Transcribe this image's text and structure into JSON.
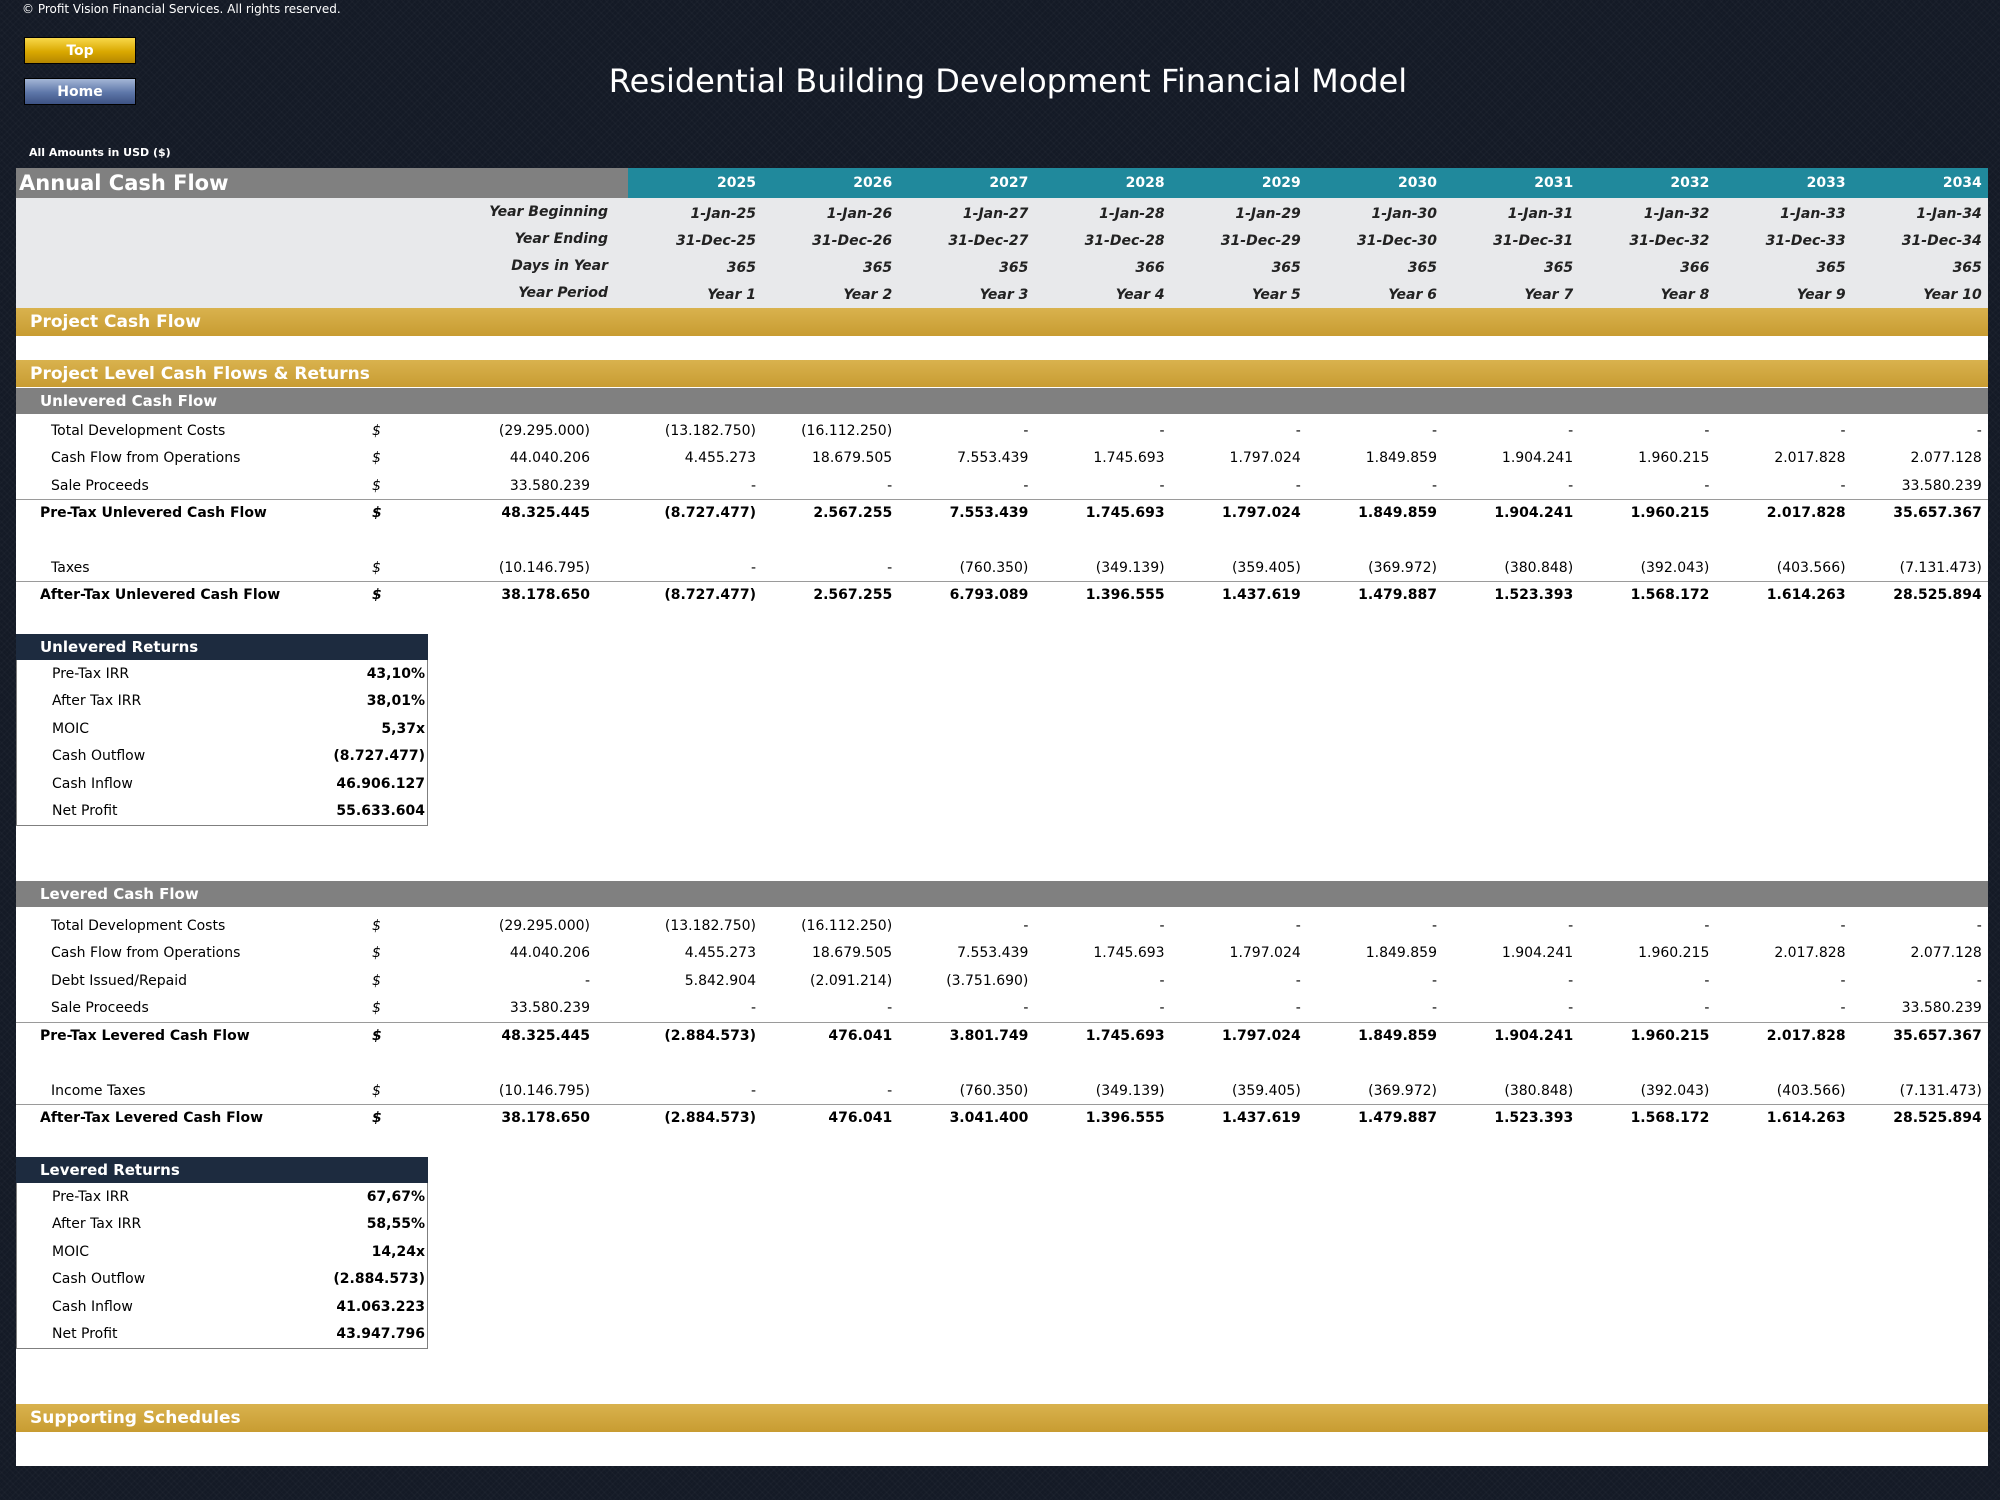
{
  "copyright": "© Profit Vision Financial Services. All rights reserved.",
  "nav": {
    "top_label": "Top",
    "home_label": "Home"
  },
  "title": "Residential Building Development Financial Model",
  "amounts_note": "All Amounts in  USD ($)",
  "sheet_title": "Annual Cash Flow",
  "years": [
    "2025",
    "2026",
    "2027",
    "2028",
    "2029",
    "2030",
    "2031",
    "2032",
    "2033",
    "2034"
  ],
  "info_rows": [
    {
      "label": "Year Beginning",
      "values": [
        "1-Jan-25",
        "1-Jan-26",
        "1-Jan-27",
        "1-Jan-28",
        "1-Jan-29",
        "1-Jan-30",
        "1-Jan-31",
        "1-Jan-32",
        "1-Jan-33",
        "1-Jan-34"
      ]
    },
    {
      "label": "Year Ending",
      "values": [
        "31-Dec-25",
        "31-Dec-26",
        "31-Dec-27",
        "31-Dec-28",
        "31-Dec-29",
        "31-Dec-30",
        "31-Dec-31",
        "31-Dec-32",
        "31-Dec-33",
        "31-Dec-34"
      ]
    },
    {
      "label": "Days in Year",
      "values": [
        "365",
        "365",
        "365",
        "366",
        "365",
        "365",
        "365",
        "366",
        "365",
        "365"
      ]
    },
    {
      "label": "Year Period",
      "values": [
        "Year 1",
        "Year 2",
        "Year 3",
        "Year 4",
        "Year 5",
        "Year 6",
        "Year 7",
        "Year 8",
        "Year 9",
        "Year 10"
      ]
    }
  ],
  "sections": {
    "project_cash_flow": "Project Cash Flow",
    "project_level": "Project Level Cash Flows & Returns",
    "unlevered_cf": "Unlevered Cash Flow",
    "unlevered_returns": "Unlevered Returns",
    "levered_cf": "Levered Cash Flow",
    "levered_returns": "Levered Returns",
    "supporting": "Supporting Schedules"
  },
  "unlevered_rows": [
    {
      "label": "Total Development Costs",
      "currency": "$",
      "total": "(29.295.000)",
      "values": [
        "(13.182.750)",
        "(16.112.250)",
        "-",
        "-",
        "-",
        "-",
        "-",
        "-",
        "-",
        "-"
      ],
      "bold": false
    },
    {
      "label": "Cash Flow from Operations",
      "currency": "$",
      "total": "44.040.206",
      "values": [
        "4.455.273",
        "18.679.505",
        "7.553.439",
        "1.745.693",
        "1.797.024",
        "1.849.859",
        "1.904.241",
        "1.960.215",
        "2.017.828",
        "2.077.128"
      ],
      "bold": false
    },
    {
      "label": "Sale Proceeds",
      "currency": "$",
      "total": "33.580.239",
      "values": [
        "-",
        "-",
        "-",
        "-",
        "-",
        "-",
        "-",
        "-",
        "-",
        "33.580.239"
      ],
      "bold": false
    },
    {
      "label": "Pre-Tax Unlevered Cash Flow",
      "currency": "$",
      "total": "48.325.445",
      "values": [
        "(8.727.477)",
        "2.567.255",
        "7.553.439",
        "1.745.693",
        "1.797.024",
        "1.849.859",
        "1.904.241",
        "1.960.215",
        "2.017.828",
        "35.657.367"
      ],
      "bold": true
    },
    {
      "label": "Taxes",
      "currency": "$",
      "total": "(10.146.795)",
      "values": [
        "-",
        "-",
        "(760.350)",
        "(349.139)",
        "(359.405)",
        "(369.972)",
        "(380.848)",
        "(392.043)",
        "(403.566)",
        "(7.131.473)"
      ],
      "bold": false
    },
    {
      "label": "After-Tax Unlevered Cash Flow",
      "currency": "$",
      "total": "38.178.650",
      "values": [
        "(8.727.477)",
        "2.567.255",
        "6.793.089",
        "1.396.555",
        "1.437.619",
        "1.479.887",
        "1.523.393",
        "1.568.172",
        "1.614.263",
        "28.525.894"
      ],
      "bold": true
    }
  ],
  "unlevered_returns": [
    {
      "label": "Pre-Tax IRR",
      "value": "43,10%"
    },
    {
      "label": "After Tax IRR",
      "value": "38,01%"
    },
    {
      "label": "MOIC",
      "value": "5,37x"
    },
    {
      "label": "Cash Outflow",
      "value": "(8.727.477)"
    },
    {
      "label": "Cash Inflow",
      "value": "46.906.127"
    },
    {
      "label": "Net Profit",
      "value": "55.633.604"
    }
  ],
  "levered_rows": [
    {
      "label": "Total Development Costs",
      "currency": "$",
      "total": "(29.295.000)",
      "values": [
        "(13.182.750)",
        "(16.112.250)",
        "-",
        "-",
        "-",
        "-",
        "-",
        "-",
        "-",
        "-"
      ],
      "bold": false
    },
    {
      "label": "Cash Flow from Operations",
      "currency": "$",
      "total": "44.040.206",
      "values": [
        "4.455.273",
        "18.679.505",
        "7.553.439",
        "1.745.693",
        "1.797.024",
        "1.849.859",
        "1.904.241",
        "1.960.215",
        "2.017.828",
        "2.077.128"
      ],
      "bold": false
    },
    {
      "label": "Debt Issued/Repaid",
      "currency": "$",
      "total": "-",
      "values": [
        "5.842.904",
        "(2.091.214)",
        "(3.751.690)",
        "-",
        "-",
        "-",
        "-",
        "-",
        "-",
        "-"
      ],
      "bold": false
    },
    {
      "label": "Sale Proceeds",
      "currency": "$",
      "total": "33.580.239",
      "values": [
        "-",
        "-",
        "-",
        "-",
        "-",
        "-",
        "-",
        "-",
        "-",
        "33.580.239"
      ],
      "bold": false
    },
    {
      "label": "Pre-Tax Levered Cash Flow",
      "currency": "$",
      "total": "48.325.445",
      "values": [
        "(2.884.573)",
        "476.041",
        "3.801.749",
        "1.745.693",
        "1.797.024",
        "1.849.859",
        "1.904.241",
        "1.960.215",
        "2.017.828",
        "35.657.367"
      ],
      "bold": true
    },
    {
      "label": "Income Taxes",
      "currency": "$",
      "total": "(10.146.795)",
      "values": [
        "-",
        "-",
        "(760.350)",
        "(349.139)",
        "(359.405)",
        "(369.972)",
        "(380.848)",
        "(392.043)",
        "(403.566)",
        "(7.131.473)"
      ],
      "bold": false
    },
    {
      "label": "After-Tax Levered Cash Flow",
      "currency": "$",
      "total": "38.178.650",
      "values": [
        "(2.884.573)",
        "476.041",
        "3.041.400",
        "1.396.555",
        "1.437.619",
        "1.479.887",
        "1.523.393",
        "1.568.172",
        "1.614.263",
        "28.525.894"
      ],
      "bold": true
    }
  ],
  "levered_returns": [
    {
      "label": "Pre-Tax IRR",
      "value": "67,67%"
    },
    {
      "label": "After Tax IRR",
      "value": "58,55%"
    },
    {
      "label": "MOIC",
      "value": "14,24x"
    },
    {
      "label": "Cash Outflow",
      "value": "(2.884.573)"
    },
    {
      "label": "Cash Inflow",
      "value": "41.063.223"
    },
    {
      "label": "Net Profit",
      "value": "43.947.796"
    }
  ]
}
